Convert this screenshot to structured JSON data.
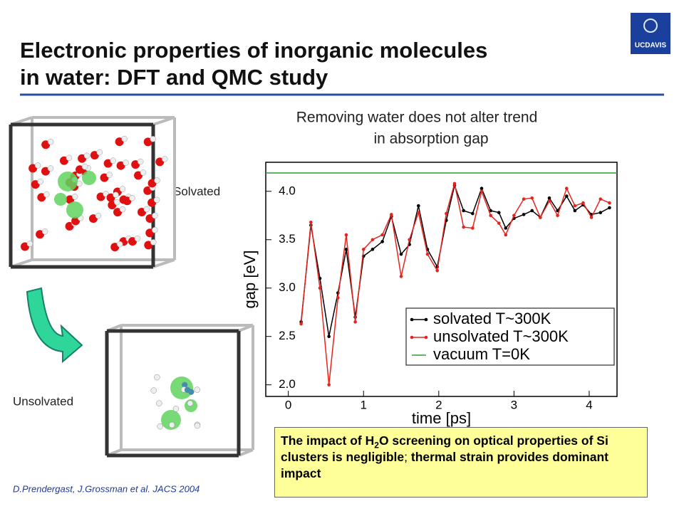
{
  "header": {
    "title": [
      "Electronic properties of inorganic molecules",
      "in water: DFT and QMC study"
    ],
    "logo": "UCDAVIS"
  },
  "labels": {
    "solvated": "Solvated",
    "unsolvated": "Unsolvated"
  },
  "citation": "D.Prendergast, J.Grossman et al. JACS 2004",
  "conclusion": {
    "parts": [
      {
        "text": "The impact of H",
        "bold": true
      },
      {
        "text": "2",
        "bold": true,
        "sub": true
      },
      {
        "text": "O screening on optical properties of  Si clusters is negligible",
        "bold": true
      },
      {
        "text": ";",
        "bold": false
      },
      {
        "text": " thermal strain provides dominant impact",
        "bold": true
      }
    ]
  },
  "chart_data": {
    "type": "line",
    "title": [
      "Removing water does not alter trend",
      "in absorption gap"
    ],
    "xlabel": "time [ps]",
    "ylabel": "gap [eV]",
    "x": [
      0.17,
      0.3,
      0.42,
      0.54,
      0.66,
      0.77,
      0.89,
      1.0,
      1.12,
      1.25,
      1.37,
      1.5,
      1.61,
      1.73,
      1.85,
      1.98,
      2.1,
      2.21,
      2.33,
      2.45,
      2.57,
      2.69,
      2.8,
      2.89,
      3.0,
      3.13,
      3.24,
      3.35,
      3.47,
      3.58,
      3.7,
      3.81,
      3.92,
      4.03,
      4.15,
      4.27
    ],
    "series": [
      {
        "name": "solvated T~300K",
        "color": "#000000",
        "values": [
          2.65,
          3.65,
          3.1,
          2.5,
          2.95,
          3.4,
          2.7,
          3.33,
          3.4,
          3.48,
          3.74,
          3.35,
          3.45,
          3.85,
          3.4,
          3.22,
          3.7,
          4.06,
          3.8,
          3.77,
          4.03,
          3.8,
          3.78,
          3.62,
          3.72,
          3.76,
          3.8,
          3.73,
          3.93,
          3.8,
          3.95,
          3.8,
          3.86,
          3.76,
          3.78,
          3.83
        ]
      },
      {
        "name": "unsolvated T~300K",
        "color": "#e8231e",
        "values": [
          2.63,
          3.68,
          3.0,
          2.0,
          2.9,
          3.55,
          2.65,
          3.4,
          3.5,
          3.55,
          3.76,
          3.12,
          3.5,
          3.78,
          3.35,
          3.18,
          3.77,
          4.08,
          3.63,
          3.62,
          4.0,
          3.75,
          3.67,
          3.55,
          3.75,
          3.92,
          3.93,
          3.73,
          3.9,
          3.75,
          4.03,
          3.85,
          3.88,
          3.73,
          3.92,
          3.88
        ]
      }
    ],
    "reference": {
      "name": "vacuum T=0K",
      "color": "#2e9e2e",
      "value": 4.19
    },
    "xlim": [
      -0.3,
      4.37
    ],
    "ylim": [
      1.88,
      4.3
    ],
    "xticks": [
      0,
      1,
      2,
      3,
      4
    ],
    "yticks": [
      {
        "value": 2.0,
        "label": "2.0"
      },
      {
        "value": 2.5,
        "label": "2.5"
      },
      {
        "value": 3.0,
        "label": "3.0"
      },
      {
        "value": 3.5,
        "label": "3.5"
      },
      {
        "value": 4.0,
        "label": "4.0"
      }
    ],
    "legend": "lower right"
  }
}
